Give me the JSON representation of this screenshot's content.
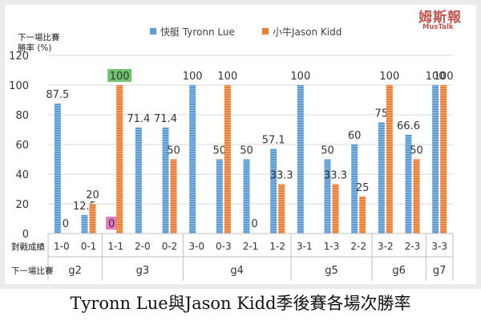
{
  "caption": "Tyronn Lue與Jason Kidd季後賽各場次勝率",
  "logo": {
    "main": "姆斯報",
    "sub": "MusTalk"
  },
  "chart_data": {
    "type": "bar",
    "ylabel": "下一場比賽 勝率 (%)",
    "ylim": [
      0,
      120
    ],
    "yticks": [
      0,
      20,
      40,
      60,
      80,
      100,
      120
    ],
    "grid": true,
    "legend_position": "top",
    "row_labels": {
      "record": "對戰成績",
      "next_game": "下一場比賽"
    },
    "categories": [
      "1-0",
      "0-1",
      "1-1",
      "2-0",
      "0-2",
      "3-0",
      "0-3",
      "2-1",
      "1-2",
      "3-1",
      "1-3",
      "2-2",
      "3-2",
      "2-3",
      "3-3"
    ],
    "groups": [
      {
        "label": "g2",
        "categories": [
          "1-0",
          "0-1"
        ]
      },
      {
        "label": "g3",
        "categories": [
          "1-1",
          "2-0",
          "0-2"
        ]
      },
      {
        "label": "g4",
        "categories": [
          "3-0",
          "0-3",
          "2-1",
          "1-2"
        ]
      },
      {
        "label": "g5",
        "categories": [
          "3-1",
          "1-3",
          "2-2"
        ]
      },
      {
        "label": "g6",
        "categories": [
          "3-2",
          "2-3"
        ]
      },
      {
        "label": "g7",
        "categories": [
          "3-3"
        ]
      }
    ],
    "series": [
      {
        "name": "快艇 Tyronn Lue",
        "color": "#5b9bd5",
        "values": [
          87.5,
          12.5,
          0,
          71.4,
          71.4,
          100,
          50,
          50,
          57.1,
          100,
          50,
          60,
          75,
          66.6,
          100
        ],
        "labels": [
          "87.5",
          "12.5",
          "0",
          "71.4",
          "71.4",
          "100",
          "50",
          "50",
          "57.1",
          "100",
          "50",
          "60",
          "75",
          "66.6",
          "100"
        ]
      },
      {
        "name": "小牛Jason Kidd",
        "color": "#ed7d31",
        "values": [
          0,
          20,
          100,
          null,
          50,
          null,
          100,
          0,
          33.3,
          null,
          33.3,
          25,
          100,
          50,
          100
        ],
        "labels": [
          "0",
          "20",
          "100",
          null,
          "50",
          null,
          "100",
          "0",
          "33.3",
          null,
          "33.3",
          "25",
          "100",
          "50",
          "100"
        ]
      }
    ],
    "highlights": [
      {
        "series": 1,
        "category": "1-1",
        "color": "#70c270"
      },
      {
        "series": 0,
        "category": "1-1",
        "color": "#e678c0"
      }
    ]
  }
}
